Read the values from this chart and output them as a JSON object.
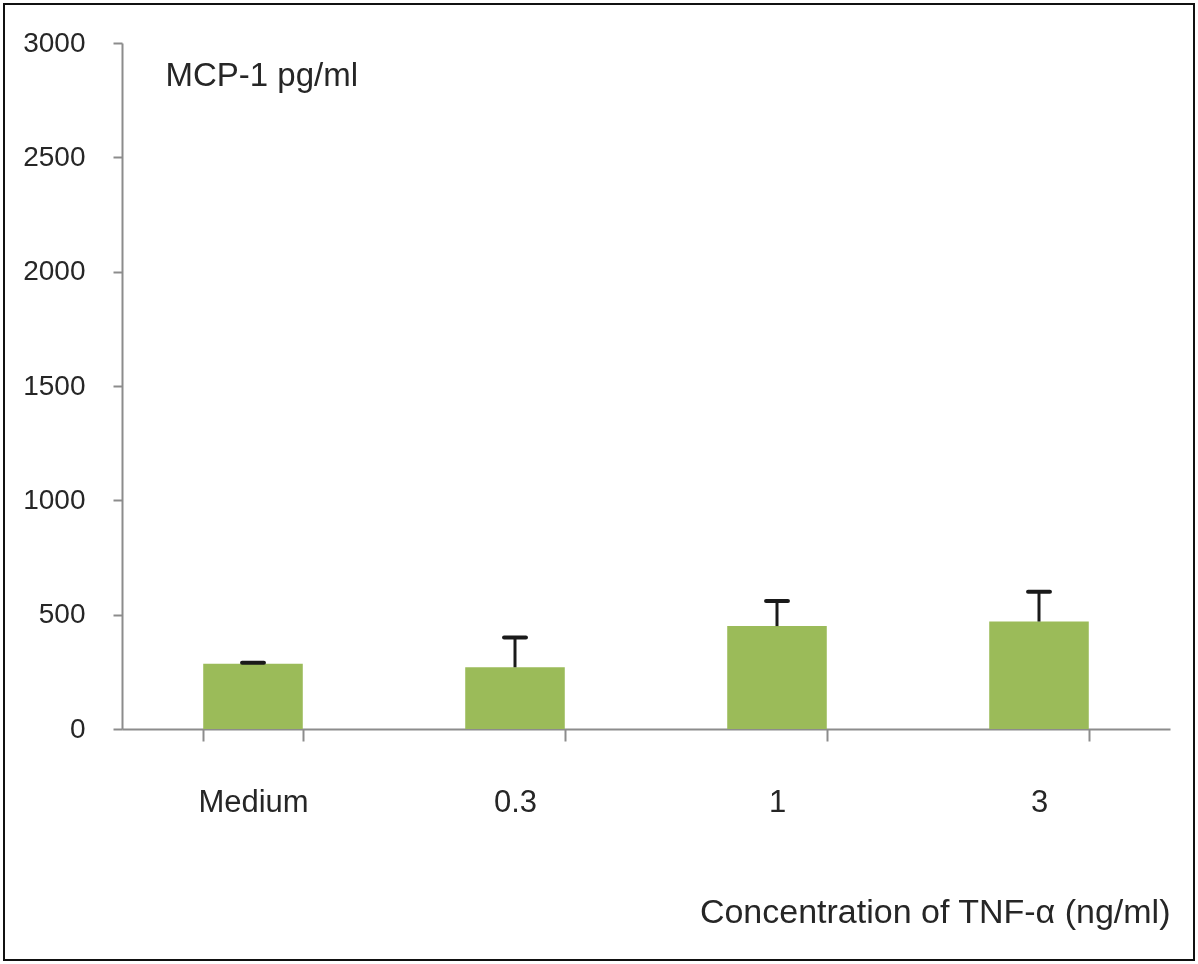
{
  "chart_data": {
    "type": "bar",
    "xlabel": "Concentration of TNF-α (ng/ml)",
    "ylabel": "MCP-1 pg/ml",
    "categories": [
      "Medium",
      "0.3",
      "1",
      "3"
    ],
    "values": [
      285,
      270,
      450,
      470
    ],
    "color": "#9bbb59",
    "errors": [
      [
        285,
        290
      ],
      [
        270,
        400
      ],
      [
        450,
        560
      ],
      [
        470,
        600
      ]
    ],
    "ylim": [
      0,
      3000
    ],
    "yticks": [
      0,
      500,
      1000,
      1500,
      2000,
      2500,
      3000
    ]
  }
}
